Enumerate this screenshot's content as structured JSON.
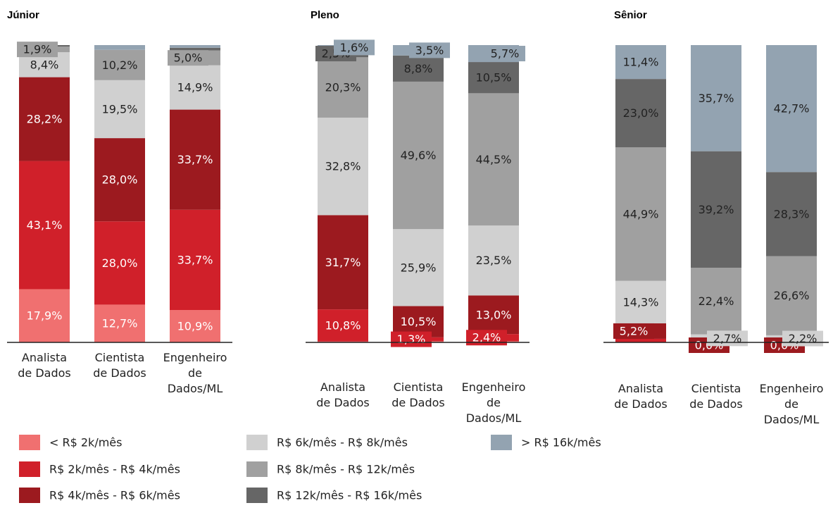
{
  "chart_data": [
    {
      "type": "bar",
      "stacked": true,
      "title": "Júnior",
      "categories": [
        "Analista de Dados",
        "Cientista de Dados",
        "Engenheiro de Dados/ML"
      ],
      "ylim": [
        0,
        100
      ],
      "series": [
        {
          "name": "< R$ 2k/mês",
          "color": "#f07070",
          "values": [
            17.9,
            12.7,
            10.9
          ],
          "value_labels": [
            "17,9%",
            "12,7%",
            "10,9%"
          ]
        },
        {
          "name": "R$ 2k/mês - R$ 4k/mês",
          "color": "#d0202a",
          "values": [
            43.1,
            28.0,
            33.7
          ],
          "value_labels": [
            "43,1%",
            "28,0%",
            "33,7%"
          ]
        },
        {
          "name": "R$ 4k/mês - R$ 6k/mês",
          "color": "#9c1a1f",
          "values": [
            28.2,
            28.0,
            33.7
          ],
          "value_labels": [
            "28,2%",
            "28,0%",
            "33,7%"
          ]
        },
        {
          "name": "R$ 6k/mês - R$ 8k/mês",
          "color": "#d0d0d0",
          "values": [
            8.4,
            19.5,
            14.9
          ],
          "value_labels": [
            "8,4%",
            "19,5%",
            "14,9%"
          ]
        },
        {
          "name": "R$ 8k/mês - R$ 12k/mês",
          "color": "#a0a0a0",
          "values": [
            1.9,
            10.2,
            5.0
          ],
          "value_labels": [
            "1,9%",
            "10,2%",
            "5,0%"
          ]
        },
        {
          "name": "R$ 12k/mês - R$ 16k/mês",
          "color": "#666666",
          "values": [
            0.5,
            0,
            0.9
          ],
          "value_labels": [
            null,
            null,
            null
          ]
        },
        {
          "name": "> R$ 16k/mês",
          "color": "#93a3b1",
          "values": [
            0,
            1.6,
            0.9
          ],
          "value_labels": [
            null,
            null,
            null
          ]
        }
      ]
    },
    {
      "type": "bar",
      "stacked": true,
      "title": "Pleno",
      "categories": [
        "Analista de Dados",
        "Cientista de Dados",
        "Engenheiro de Dados/ML"
      ],
      "ylim": [
        0,
        100
      ],
      "series": [
        {
          "name": "< R$ 2k/mês",
          "color": "#f07070",
          "values": [
            0.3,
            0.4,
            0.4
          ],
          "value_labels": [
            null,
            null,
            null
          ]
        },
        {
          "name": "R$ 2k/mês - R$ 4k/mês",
          "color": "#d0202a",
          "values": [
            10.8,
            1.3,
            2.4
          ],
          "value_labels": [
            "10,8%",
            "1,3%",
            "2,4%"
          ]
        },
        {
          "name": "R$ 4k/mês - R$ 6k/mês",
          "color": "#9c1a1f",
          "values": [
            31.7,
            10.5,
            13.0
          ],
          "value_labels": [
            "31,7%",
            "10,5%",
            "13,0%"
          ]
        },
        {
          "name": "R$ 6k/mês - R$ 8k/mês",
          "color": "#d0d0d0",
          "values": [
            32.8,
            25.9,
            23.5
          ],
          "value_labels": [
            "32,8%",
            "25,9%",
            "23,5%"
          ]
        },
        {
          "name": "R$ 8k/mês - R$ 12k/mês",
          "color": "#a0a0a0",
          "values": [
            20.3,
            49.6,
            44.5
          ],
          "value_labels": [
            "20,3%",
            "49,6%",
            "44,5%"
          ]
        },
        {
          "name": "R$ 12k/mês - R$ 16k/mês",
          "color": "#666666",
          "values": [
            2.5,
            8.8,
            10.5
          ],
          "value_labels": [
            "2,5%",
            "8,8%",
            "10,5%"
          ]
        },
        {
          "name": "> R$ 16k/mês",
          "color": "#93a3b1",
          "values": [
            1.6,
            3.5,
            5.7
          ],
          "value_labels": [
            "1,6%",
            "3,5%",
            "5,7%"
          ]
        }
      ]
    },
    {
      "type": "bar",
      "stacked": true,
      "title": "Sênior",
      "categories": [
        "Analista de Dados",
        "Cientista de Dados",
        "Engenheiro de Dados/ML"
      ],
      "ylim": [
        0,
        100
      ],
      "series": [
        {
          "name": "< R$ 2k/mês",
          "color": "#f07070",
          "values": [
            0,
            0,
            0
          ],
          "value_labels": [
            null,
            null,
            null
          ]
        },
        {
          "name": "R$ 2k/mês - R$ 4k/mês",
          "color": "#d0202a",
          "values": [
            1.2,
            0,
            0.2
          ],
          "value_labels": [
            null,
            null,
            null
          ]
        },
        {
          "name": "R$ 4k/mês - R$ 6k/mês",
          "color": "#9c1a1f",
          "values": [
            5.2,
            0.0,
            0.0
          ],
          "value_labels": [
            "5,2%",
            "0,0%",
            "0,0%"
          ]
        },
        {
          "name": "R$ 6k/mês - R$ 8k/mês",
          "color": "#d0d0d0",
          "values": [
            14.3,
            2.7,
            2.2
          ],
          "value_labels": [
            "14,3%",
            "2,7%",
            "2,2%"
          ]
        },
        {
          "name": "R$ 8k/mês - R$ 12k/mês",
          "color": "#a0a0a0",
          "values": [
            44.9,
            22.4,
            26.6
          ],
          "value_labels": [
            "44,9%",
            "22,4%",
            "26,6%"
          ]
        },
        {
          "name": "R$ 12k/mês - R$ 16k/mês",
          "color": "#666666",
          "values": [
            23.0,
            39.2,
            28.3
          ],
          "value_labels": [
            "23,0%",
            "39,2%",
            "28,3%"
          ]
        },
        {
          "name": "> R$ 16k/mês",
          "color": "#93a3b1",
          "values": [
            11.4,
            35.7,
            42.7
          ],
          "value_labels": [
            "11,4%",
            "35,7%",
            "42,7%"
          ]
        }
      ]
    }
  ]
}
